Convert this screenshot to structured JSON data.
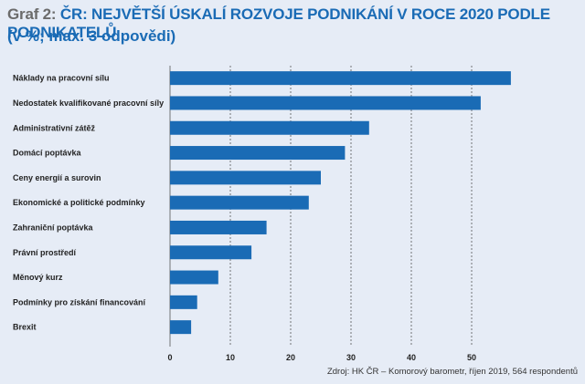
{
  "header": {
    "title_prefix": "Graf 2: ",
    "title_main": "ČR: NEJVĚTŠÍ ÚSKALÍ ROZVOJE PODNIKÁNÍ V ROCE 2020 PODLE PODNIKATELŮ",
    "subtitle": "(v %; max. 3 odpovědi)"
  },
  "source": "Zdroj: HK ČR – Komorový barometr, říjen 2019, 564 respondentů",
  "colors": {
    "bar": "#1a6bb5",
    "title": "#1a6bb5",
    "title_prefix": "#6b6b6b",
    "background": "#e6ecf6",
    "grid": "#555555"
  },
  "chart_data": {
    "type": "bar",
    "orientation": "horizontal",
    "categories": [
      "Náklady na pracovní sílu",
      "Nedostatek kvalifikované pracovní síly",
      "Administrativní zátěž",
      "Domácí poptávka",
      "Ceny energií a surovin",
      "Ekonomické a politické podmínky",
      "Zahraniční poptávka",
      "Právní prostředí",
      "Měnový kurz",
      "Podmínky pro získání financování",
      "Brexit"
    ],
    "values": [
      56.5,
      51.5,
      33,
      29,
      25,
      23,
      16,
      13.5,
      8,
      4.5,
      3.5
    ],
    "xlim": [
      0,
      60
    ],
    "xticks": [
      0,
      10,
      20,
      30,
      40,
      50
    ],
    "grid": "vertical dashed"
  }
}
